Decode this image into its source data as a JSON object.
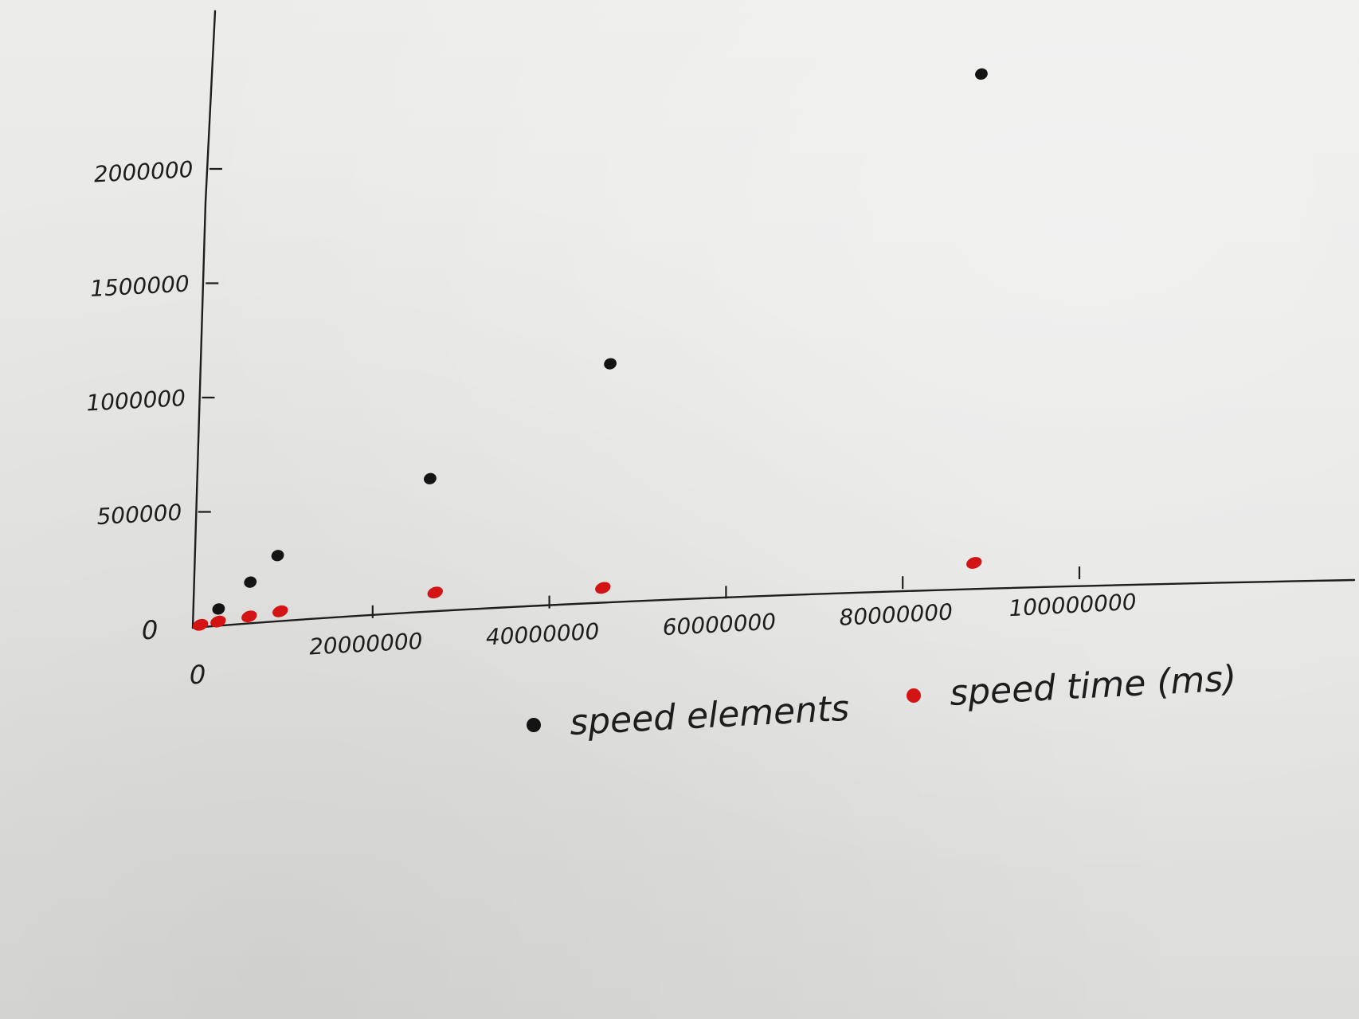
{
  "chart_data": {
    "type": "scatter",
    "title": "",
    "xlabel": "",
    "ylabel": "",
    "xlim": [
      0,
      110000000
    ],
    "ylim": [
      0,
      2300000
    ],
    "x_ticks": [
      {
        "value": 20000000,
        "label": "20000000"
      },
      {
        "value": 40000000,
        "label": "40000000"
      },
      {
        "value": 60000000,
        "label": "60000000"
      },
      {
        "value": 80000000,
        "label": "80000000"
      },
      {
        "value": 100000000,
        "label": "100000000"
      }
    ],
    "y_ticks": [
      {
        "value": 500000,
        "label": "500000"
      },
      {
        "value": 1000000,
        "label": "1000000"
      },
      {
        "value": 1500000,
        "label": "1500000"
      },
      {
        "value": 2000000,
        "label": "2000000"
      }
    ],
    "origin_labels": [
      "0",
      "0"
    ],
    "series": [
      {
        "name": "speed elements",
        "color": "#141414",
        "points": [
          {
            "x": 2500000,
            "y": 70000
          },
          {
            "x": 6000000,
            "y": 180000
          },
          {
            "x": 9000000,
            "y": 290000
          },
          {
            "x": 26000000,
            "y": 590000
          },
          {
            "x": 46000000,
            "y": 1050000
          },
          {
            "x": 87000000,
            "y": 2230000
          }
        ]
      },
      {
        "name": "speed time (ms)",
        "color": "#d41414",
        "points": [
          {
            "x": 500000,
            "y": 5000
          },
          {
            "x": 2500000,
            "y": 15000
          },
          {
            "x": 6000000,
            "y": 30000
          },
          {
            "x": 9500000,
            "y": 45000
          },
          {
            "x": 27000000,
            "y": 90000
          },
          {
            "x": 46000000,
            "y": 70000
          },
          {
            "x": 88000000,
            "y": 90000
          }
        ]
      }
    ],
    "legend_placement": "bottom-center",
    "grid": false
  }
}
